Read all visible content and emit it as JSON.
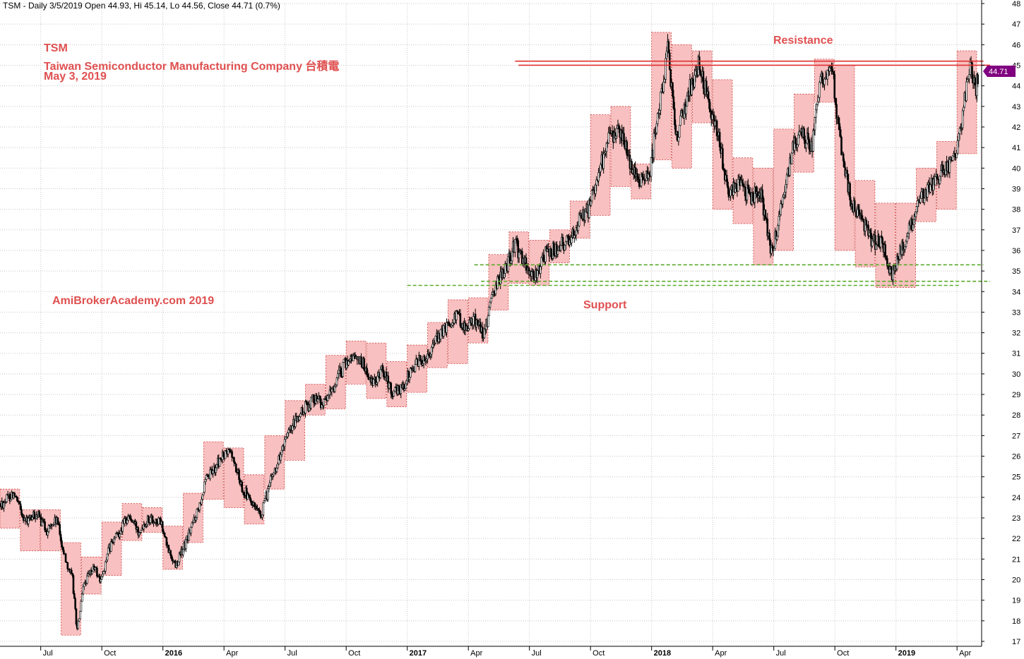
{
  "header": {
    "text": "TSM - Daily 3/5/2019 Open 44.93, Hi 45.14, Lo 44.56, Close 44.71 (0.7%)"
  },
  "annotations": {
    "symbol": "TSM",
    "company": "Taiwan Semiconductor Manufacturing Company 台積電",
    "date": "May 3, 2019",
    "website": "AmiBrokerAcademy.com  2019",
    "resistance": "Resistance",
    "support": "Support"
  },
  "colors": {
    "box_fill": "#f8c0c0",
    "box_border": "#d04040",
    "candle": "#000000",
    "resistance_line": "#e03030",
    "support_line": "#5aaa2a",
    "price_badge": "#800080",
    "annotation_text": "#e05050"
  },
  "chart_data": {
    "type": "candlestick",
    "ylim": [
      16.7,
      48.2
    ],
    "y_ticks": [
      17,
      18,
      19,
      20,
      21,
      22,
      23,
      24,
      25,
      26,
      27,
      28,
      29,
      30,
      31,
      32,
      33,
      34,
      35,
      36,
      37,
      38,
      39,
      40,
      41,
      42,
      43,
      44,
      45,
      46,
      47,
      48
    ],
    "x_ticks": [
      {
        "label": "Jul",
        "x": 2015.5,
        "year": false
      },
      {
        "label": "Oct",
        "x": 2015.75,
        "year": false
      },
      {
        "label": "2016",
        "x": 2016.0,
        "year": true
      },
      {
        "label": "Apr",
        "x": 2016.25,
        "year": false
      },
      {
        "label": "Jul",
        "x": 2016.5,
        "year": false
      },
      {
        "label": "Oct",
        "x": 2016.75,
        "year": false
      },
      {
        "label": "2017",
        "x": 2017.0,
        "year": true
      },
      {
        "label": "Apr",
        "x": 2017.25,
        "year": false
      },
      {
        "label": "Jul",
        "x": 2017.5,
        "year": false
      },
      {
        "label": "Oct",
        "x": 2017.75,
        "year": false
      },
      {
        "label": "2018",
        "x": 2018.0,
        "year": true
      },
      {
        "label": "Apr",
        "x": 2018.25,
        "year": false
      },
      {
        "label": "Jul",
        "x": 2018.5,
        "year": false
      },
      {
        "label": "Oct",
        "x": 2018.75,
        "year": false
      },
      {
        "label": "2019",
        "x": 2019.0,
        "year": true
      },
      {
        "label": "Apr",
        "x": 2019.25,
        "year": false
      }
    ],
    "monthly_ranges": [
      {
        "month": "2015-05",
        "low": 22.5,
        "high": 24.4
      },
      {
        "month": "2015-06",
        "low": 21.4,
        "high": 23.4
      },
      {
        "month": "2015-07",
        "low": 21.4,
        "high": 23.4
      },
      {
        "month": "2015-08",
        "low": 17.3,
        "high": 21.8
      },
      {
        "month": "2015-09",
        "low": 19.3,
        "high": 21.1
      },
      {
        "month": "2015-10",
        "low": 20.2,
        "high": 22.8
      },
      {
        "month": "2015-11",
        "low": 21.9,
        "high": 23.7
      },
      {
        "month": "2015-12",
        "low": 22.3,
        "high": 23.5
      },
      {
        "month": "2016-01",
        "low": 20.5,
        "high": 22.6
      },
      {
        "month": "2016-02",
        "low": 21.8,
        "high": 24.2
      },
      {
        "month": "2016-03",
        "low": 23.9,
        "high": 26.7
      },
      {
        "month": "2016-04",
        "low": 23.5,
        "high": 26.4
      },
      {
        "month": "2016-05",
        "low": 22.7,
        "high": 25.1
      },
      {
        "month": "2016-06",
        "low": 24.4,
        "high": 27.0
      },
      {
        "month": "2016-07",
        "low": 25.8,
        "high": 28.7
      },
      {
        "month": "2016-08",
        "low": 28.0,
        "high": 29.5
      },
      {
        "month": "2016-09",
        "low": 28.3,
        "high": 30.9
      },
      {
        "month": "2016-10",
        "low": 29.5,
        "high": 31.6
      },
      {
        "month": "2016-11",
        "low": 28.8,
        "high": 31.5
      },
      {
        "month": "2016-12",
        "low": 28.4,
        "high": 30.6
      },
      {
        "month": "2017-01",
        "low": 29.1,
        "high": 31.4
      },
      {
        "month": "2017-02",
        "low": 30.3,
        "high": 32.5
      },
      {
        "month": "2017-03",
        "low": 30.5,
        "high": 33.6
      },
      {
        "month": "2017-04",
        "low": 31.5,
        "high": 33.7
      },
      {
        "month": "2017-05",
        "low": 33.1,
        "high": 35.8
      },
      {
        "month": "2017-06",
        "low": 34.4,
        "high": 36.9
      },
      {
        "month": "2017-07",
        "low": 34.3,
        "high": 36.5
      },
      {
        "month": "2017-08",
        "low": 35.4,
        "high": 37.0
      },
      {
        "month": "2017-09",
        "low": 36.6,
        "high": 38.4
      },
      {
        "month": "2017-10",
        "low": 37.7,
        "high": 42.6
      },
      {
        "month": "2017-11",
        "low": 39.1,
        "high": 43.0
      },
      {
        "month": "2017-12",
        "low": 38.5,
        "high": 40.2
      },
      {
        "month": "2018-01",
        "low": 40.4,
        "high": 46.6
      },
      {
        "month": "2018-02",
        "low": 40.0,
        "high": 46.0
      },
      {
        "month": "2018-03",
        "low": 42.2,
        "high": 45.7
      },
      {
        "month": "2018-04",
        "low": 38.0,
        "high": 44.3
      },
      {
        "month": "2018-05",
        "low": 37.3,
        "high": 40.5
      },
      {
        "month": "2018-06",
        "low": 35.3,
        "high": 40.0
      },
      {
        "month": "2018-07",
        "low": 36.0,
        "high": 41.9
      },
      {
        "month": "2018-08",
        "low": 39.8,
        "high": 43.6
      },
      {
        "month": "2018-09",
        "low": 43.2,
        "high": 45.3
      },
      {
        "month": "2018-10",
        "low": 36.0,
        "high": 45.0
      },
      {
        "month": "2018-11",
        "low": 35.2,
        "high": 39.4
      },
      {
        "month": "2018-12",
        "low": 34.2,
        "high": 38.3
      },
      {
        "month": "2019-01",
        "low": 34.2,
        "high": 38.3
      },
      {
        "month": "2019-02",
        "low": 37.4,
        "high": 40.0
      },
      {
        "month": "2019-03",
        "low": 38.0,
        "high": 41.3
      },
      {
        "month": "2019-04",
        "low": 40.7,
        "high": 45.7
      }
    ],
    "price_path": [
      [
        "2015-05-01",
        23.6
      ],
      [
        "2015-05-20",
        24.2
      ],
      [
        "2015-06-10",
        22.8
      ],
      [
        "2015-06-25",
        23.2
      ],
      [
        "2015-07-10",
        22.4
      ],
      [
        "2015-07-25",
        22.9
      ],
      [
        "2015-08-05",
        21.3
      ],
      [
        "2015-08-18",
        20.0
      ],
      [
        "2015-08-25",
        17.5
      ],
      [
        "2015-09-05",
        19.8
      ],
      [
        "2015-09-20",
        20.6
      ],
      [
        "2015-09-30",
        19.9
      ],
      [
        "2015-10-12",
        21.5
      ],
      [
        "2015-10-28",
        22.4
      ],
      [
        "2015-11-10",
        23.1
      ],
      [
        "2015-11-25",
        22.4
      ],
      [
        "2015-12-10",
        23.0
      ],
      [
        "2015-12-28",
        22.8
      ],
      [
        "2016-01-08",
        21.5
      ],
      [
        "2016-01-20",
        20.7
      ],
      [
        "2016-02-05",
        21.8
      ],
      [
        "2016-02-20",
        23.2
      ],
      [
        "2016-03-05",
        24.8
      ],
      [
        "2016-03-25",
        25.8
      ],
      [
        "2016-04-10",
        26.3
      ],
      [
        "2016-04-28",
        24.5
      ],
      [
        "2016-05-10",
        23.8
      ],
      [
        "2016-05-25",
        23.0
      ],
      [
        "2016-06-10",
        24.8
      ],
      [
        "2016-06-28",
        26.4
      ],
      [
        "2016-07-15",
        27.6
      ],
      [
        "2016-07-30",
        28.3
      ],
      [
        "2016-08-15",
        28.9
      ],
      [
        "2016-08-30",
        28.5
      ],
      [
        "2016-09-10",
        29.2
      ],
      [
        "2016-09-28",
        30.4
      ],
      [
        "2016-10-10",
        30.9
      ],
      [
        "2016-10-25",
        30.6
      ],
      [
        "2016-11-10",
        29.4
      ],
      [
        "2016-11-25",
        30.3
      ],
      [
        "2016-12-10",
        29.0
      ],
      [
        "2016-12-28",
        29.5
      ],
      [
        "2017-01-10",
        30.4
      ],
      [
        "2017-01-30",
        30.9
      ],
      [
        "2017-02-10",
        31.5
      ],
      [
        "2017-02-28",
        32.2
      ],
      [
        "2017-03-12",
        32.9
      ],
      [
        "2017-03-30",
        32.2
      ],
      [
        "2017-04-10",
        32.7
      ],
      [
        "2017-04-25",
        31.9
      ],
      [
        "2017-05-10",
        34.2
      ],
      [
        "2017-05-30",
        35.4
      ],
      [
        "2017-06-10",
        36.3
      ],
      [
        "2017-06-28",
        35.1
      ],
      [
        "2017-07-10",
        34.7
      ],
      [
        "2017-07-25",
        35.9
      ],
      [
        "2017-08-10",
        36.0
      ],
      [
        "2017-08-28",
        36.5
      ],
      [
        "2017-09-10",
        37.2
      ],
      [
        "2017-09-28",
        37.9
      ],
      [
        "2017-10-10",
        39.5
      ],
      [
        "2017-10-28",
        41.3
      ],
      [
        "2017-11-10",
        42.0
      ],
      [
        "2017-11-28",
        40.5
      ],
      [
        "2017-12-10",
        39.4
      ],
      [
        "2017-12-28",
        39.7
      ],
      [
        "2018-01-10",
        42.5
      ],
      [
        "2018-01-25",
        45.8
      ],
      [
        "2018-02-08",
        41.5
      ],
      [
        "2018-02-25",
        43.6
      ],
      [
        "2018-03-10",
        45.1
      ],
      [
        "2018-03-28",
        43.0
      ],
      [
        "2018-04-10",
        41.4
      ],
      [
        "2018-04-25",
        38.6
      ],
      [
        "2018-05-10",
        39.3
      ],
      [
        "2018-05-28",
        38.5
      ],
      [
        "2018-06-10",
        39.1
      ],
      [
        "2018-06-28",
        35.9
      ],
      [
        "2018-07-10",
        37.6
      ],
      [
        "2018-07-28",
        40.8
      ],
      [
        "2018-08-10",
        41.6
      ],
      [
        "2018-08-28",
        41.2
      ],
      [
        "2018-09-10",
        44.1
      ],
      [
        "2018-09-28",
        44.6
      ],
      [
        "2018-10-08",
        41.5
      ],
      [
        "2018-10-25",
        38.4
      ],
      [
        "2018-11-10",
        37.6
      ],
      [
        "2018-11-28",
        36.4
      ],
      [
        "2018-12-10",
        36.5
      ],
      [
        "2018-12-24",
        34.7
      ],
      [
        "2019-01-10",
        36.2
      ],
      [
        "2019-01-28",
        37.6
      ],
      [
        "2019-02-10",
        38.6
      ],
      [
        "2019-02-28",
        39.3
      ],
      [
        "2019-03-10",
        39.8
      ],
      [
        "2019-03-28",
        40.6
      ],
      [
        "2019-04-08",
        42.4
      ],
      [
        "2019-04-22",
        45.2
      ],
      [
        "2019-04-28",
        43.6
      ],
      [
        "2019-05-03",
        44.71
      ]
    ],
    "resistance_lines": [
      {
        "from": "2017-06-10",
        "to": "2019-05-10",
        "y": 45.2
      },
      {
        "from": "2017-06-15",
        "to": "2019-05-20",
        "y": 45.0
      }
    ],
    "support_lines": [
      {
        "from": "2017-04-10",
        "to": "2019-05-10",
        "y": 35.3
      },
      {
        "from": "2017-01-01",
        "to": "2019-04-05",
        "y": 34.3
      },
      {
        "from": "2017-04-20",
        "to": "2019-05-20",
        "y": 34.5
      }
    ],
    "last_price": "44.71",
    "last_price_value": 44.71
  }
}
